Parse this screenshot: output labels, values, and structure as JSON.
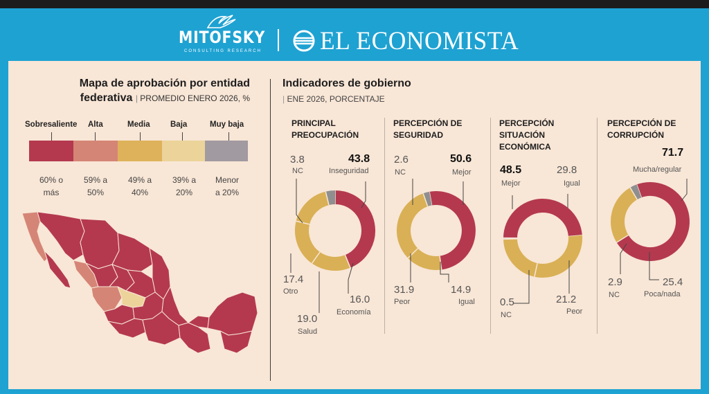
{
  "header": {
    "brand_left": "MITOFSKY",
    "brand_left_sub": "CONSULTING RESEARCH",
    "brand_right": "EL ECONOMISTA"
  },
  "map": {
    "title_line1": "Mapa de aprobación por entidad",
    "title_line2": "federativa",
    "subtitle": "PROMEDIO ENERO 2026, %",
    "legend": [
      {
        "label": "Sobresaliente",
        "range_l1": "60% o",
        "range_l2": "más",
        "color": "#b4394f"
      },
      {
        "label": "Alta",
        "range_l1": "59% a",
        "range_l2": "50%",
        "color": "#d58576"
      },
      {
        "label": "Media",
        "range_l1": "49% a",
        "range_l2": "40%",
        "color": "#deb25a"
      },
      {
        "label": "Baja",
        "range_l1": "39% a",
        "range_l2": "20%",
        "color": "#ecd39a"
      },
      {
        "label": "Muy baja",
        "range_l1": "Menor",
        "range_l2": "a 20%",
        "color": "#a19aa1"
      }
    ]
  },
  "indicators": {
    "title": "Indicadores de gobierno",
    "subtitle": "ENE 2026, PORCENTAJE"
  },
  "colors": {
    "red": "#b4394f",
    "gold": "#d9b055",
    "grey": "#8f8f8f"
  },
  "chart_data": [
    {
      "type": "pie",
      "title_line1": "PRINCIPAL",
      "title_line2": "PREOCUPACIÓN",
      "slices": [
        {
          "label": "Inseguridad",
          "value": 43.8,
          "value_text": "43.8",
          "color": "#b4394f"
        },
        {
          "label": "Economía",
          "value": 16.0,
          "value_text": "16.0",
          "color": "#d9b055"
        },
        {
          "label": "Salud",
          "value": 19.0,
          "value_text": "19.0",
          "color": "#d9b055"
        },
        {
          "label": "Otro",
          "value": 17.4,
          "value_text": "17.4",
          "color": "#d9b055"
        },
        {
          "label": "NC",
          "value": 3.8,
          "value_text": "3.8",
          "color": "#8f8f8f"
        }
      ]
    },
    {
      "type": "pie",
      "title_line1": "PERCEPCIÓN DE",
      "title_line2": "SEGURIDAD",
      "slices": [
        {
          "label": "Mejor",
          "value": 50.6,
          "value_text": "50.6",
          "color": "#b4394f"
        },
        {
          "label": "Igual",
          "value": 14.9,
          "value_text": "14.9",
          "color": "#d9b055"
        },
        {
          "label": "Peor",
          "value": 31.9,
          "value_text": "31.9",
          "color": "#d9b055"
        },
        {
          "label": "NC",
          "value": 2.6,
          "value_text": "2.6",
          "color": "#8f8f8f"
        }
      ]
    },
    {
      "type": "pie",
      "title_line1": "PERCEPCIÓN",
      "title_line2": "SITUACIÓN",
      "title_line3": "ECONÓMICA",
      "slices": [
        {
          "label": "Igual",
          "value": 29.8,
          "value_text": "29.8",
          "color": "#d9b055"
        },
        {
          "label": "Peor",
          "value": 21.2,
          "value_text": "21.2",
          "color": "#d9b055"
        },
        {
          "label": "NC",
          "value": 0.5,
          "value_text": "0.5",
          "color": "#8f8f8f"
        },
        {
          "label": "Mejor",
          "value": 48.5,
          "value_text": "48.5",
          "color": "#b4394f"
        }
      ]
    },
    {
      "type": "pie",
      "title_line1": "PERCEPCIÓN DE",
      "title_line2": "CORRUPCIÓN",
      "slices": [
        {
          "label": "Mucha/regular",
          "value": 71.7,
          "value_text": "71.7",
          "color": "#b4394f"
        },
        {
          "label": "Poca/nada",
          "value": 25.4,
          "value_text": "25.4",
          "color": "#d9b055"
        },
        {
          "label": "NC",
          "value": 2.9,
          "value_text": "2.9",
          "color": "#8f8f8f"
        }
      ]
    }
  ]
}
